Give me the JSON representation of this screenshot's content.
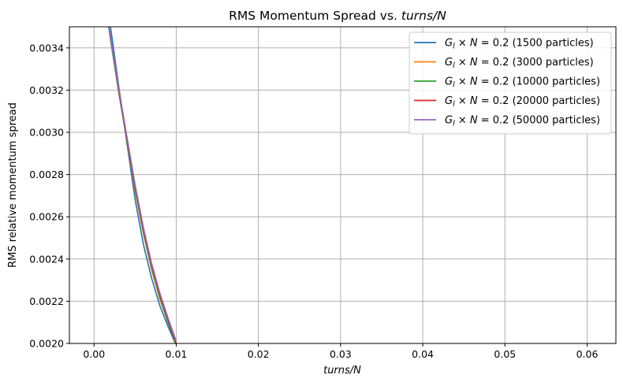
{
  "chart_data": {
    "type": "line",
    "title": "RMS Momentum Spread vs. turns/N",
    "title_prefix": "RMS Momentum Spread vs. ",
    "title_italic": "turns/N",
    "xlabel": "turns/N",
    "ylabel": "RMS relative momentum spread",
    "xlim": [
      -0.003,
      0.0635
    ],
    "ylim": [
      0.002,
      0.0035
    ],
    "xticks": [
      0.0,
      0.01,
      0.02,
      0.03,
      0.04,
      0.05,
      0.06
    ],
    "xtick_labels": [
      "0.00",
      "0.01",
      "0.02",
      "0.03",
      "0.04",
      "0.05",
      "0.06"
    ],
    "yticks": [
      0.002,
      0.0022,
      0.0024,
      0.0026,
      0.0028,
      0.003,
      0.0032,
      0.0034
    ],
    "ytick_labels": [
      "0.0020",
      "0.0022",
      "0.0024",
      "0.0026",
      "0.0028",
      "0.0030",
      "0.0032",
      "0.0034"
    ],
    "grid": true,
    "legend_position": "top-right",
    "series": [
      {
        "name": "G_l × N = 0.2 (1500 particles)",
        "label_suffix": " = 0.2 (1500 particles)",
        "color": "#1f77b4",
        "x": [
          0.0015,
          0.002,
          0.003,
          0.004,
          0.005,
          0.006,
          0.007,
          0.008,
          0.009,
          0.01
        ],
        "y": [
          0.00365,
          0.0035,
          0.00322,
          0.00295,
          0.00268,
          0.00247,
          0.00231,
          0.00218,
          0.00208,
          0.00199
        ]
      },
      {
        "name": "G_l × N = 0.2 (3000 particles)",
        "label_suffix": " = 0.2 (3000 particles)",
        "color": "#ff7f0e",
        "x": [
          0.0012,
          0.002,
          0.003,
          0.004,
          0.005,
          0.006,
          0.007,
          0.008,
          0.009,
          0.01
        ],
        "y": [
          0.00365,
          0.00345,
          0.0032,
          0.00296,
          0.00272,
          0.00252,
          0.00235,
          0.00221,
          0.0021,
          0.002
        ]
      },
      {
        "name": "G_l × N = 0.2 (10000 particles)",
        "label_suffix": " = 0.2 (10000 particles)",
        "color": "#2ca02c",
        "x": [
          0.0012,
          0.002,
          0.003,
          0.004,
          0.005,
          0.006,
          0.007,
          0.008,
          0.009,
          0.01
        ],
        "y": [
          0.00365,
          0.00344,
          0.00319,
          0.00296,
          0.00273,
          0.00253,
          0.00236,
          0.00222,
          0.0021,
          0.00199
        ]
      },
      {
        "name": "G_l × N = 0.2 (20000 particles)",
        "label_suffix": " = 0.2 (20000 particles)",
        "color": "#d62728",
        "x": [
          0.0012,
          0.002,
          0.003,
          0.004,
          0.005,
          0.006,
          0.007,
          0.008,
          0.009,
          0.01
        ],
        "y": [
          0.00365,
          0.00345,
          0.0032,
          0.00297,
          0.00274,
          0.00254,
          0.00237,
          0.00223,
          0.00211,
          0.002
        ]
      },
      {
        "name": "G_l × N = 0.2 (50000 particles)",
        "label_suffix": " = 0.2 (50000 particles)",
        "color": "#9467bd",
        "x": [
          0.0012,
          0.002,
          0.003,
          0.004,
          0.005,
          0.006,
          0.007,
          0.008,
          0.009,
          0.01
        ],
        "y": [
          0.00365,
          0.00345,
          0.00321,
          0.00298,
          0.00275,
          0.00255,
          0.00238,
          0.00224,
          0.00212,
          0.00201
        ]
      }
    ]
  }
}
